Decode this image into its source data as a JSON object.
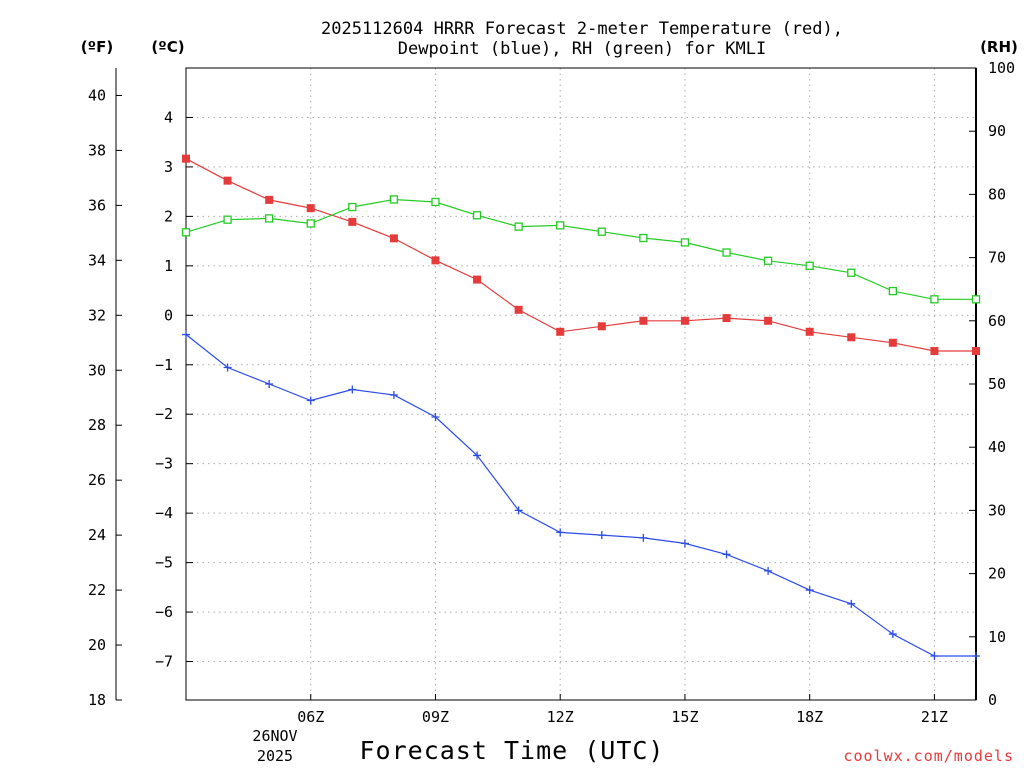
{
  "chart_data": {
    "type": "line",
    "title_lines": [
      "2025112604 HRRR Forecast 2-meter Temperature (red),",
      "Dewpoint (blue), RH (green) for KMLI"
    ],
    "xlabel": "Forecast Time (UTC)",
    "x": [
      3,
      4,
      5,
      6,
      7,
      8,
      9,
      10,
      11,
      12,
      13,
      14,
      15,
      16,
      17,
      18,
      19,
      20,
      21,
      22
    ],
    "xlim": [
      3,
      22
    ],
    "x_ticks": [
      {
        "x": 6,
        "label": "06Z"
      },
      {
        "x": 9,
        "label": "09Z"
      },
      {
        "x": 12,
        "label": "12Z"
      },
      {
        "x": 15,
        "label": "15Z"
      },
      {
        "x": 18,
        "label": "18Z"
      },
      {
        "x": 21,
        "label": "21Z"
      }
    ],
    "date_label": [
      "26NOV",
      "2025"
    ],
    "left_axis_f": {
      "unit": "(ºF)",
      "ylim": [
        18,
        41
      ],
      "ticks": [
        "18",
        "20",
        "22",
        "24",
        "26",
        "28",
        "30",
        "32",
        "34",
        "36",
        "38",
        "40"
      ]
    },
    "left_axis_c": {
      "unit": "(ºC)",
      "ylim": [
        -7.78,
        5
      ],
      "ticks": [
        "−7",
        "−6",
        "−5",
        "−4",
        "−3",
        "−2",
        "−1",
        "0",
        "1",
        "2",
        "3",
        "4"
      ]
    },
    "right_axis_rh": {
      "unit": "(RH)",
      "ylim": [
        0,
        100
      ],
      "ticks": [
        "0",
        "10",
        "20",
        "30",
        "40",
        "50",
        "60",
        "70",
        "80",
        "90",
        "100"
      ]
    },
    "series": [
      {
        "name": "2-meter Temperature",
        "axis": "F",
        "color": "#e63b3b",
        "marker": "filled-square",
        "values": [
          37.7,
          36.9,
          36.2,
          35.9,
          35.4,
          34.8,
          34.0,
          33.3,
          32.2,
          31.4,
          31.6,
          31.8,
          31.8,
          31.9,
          31.8,
          31.4,
          31.2,
          31.0,
          30.7,
          30.7
        ]
      },
      {
        "name": "Dewpoint",
        "axis": "F",
        "color": "#2b4ce6",
        "marker": "plus",
        "values": [
          31.3,
          30.1,
          29.5,
          28.9,
          29.3,
          29.1,
          28.3,
          26.9,
          24.9,
          24.1,
          24.0,
          23.9,
          23.7,
          23.3,
          22.7,
          22.0,
          21.5,
          20.4,
          19.6,
          19.6
        ]
      },
      {
        "name": "RH",
        "axis": "RH",
        "color": "#22cc22",
        "marker": "open-square",
        "values": [
          74.0,
          76.0,
          76.2,
          75.4,
          78.0,
          79.2,
          78.8,
          76.7,
          74.9,
          75.1,
          74.1,
          73.1,
          72.4,
          70.8,
          69.5,
          68.7,
          67.6,
          64.7,
          63.4,
          63.4
        ]
      }
    ]
  },
  "credit": "coolwx.com/models",
  "colors": {
    "credit": "#e83a3a",
    "grid": "#aaaaaa",
    "axis": "#000000"
  }
}
